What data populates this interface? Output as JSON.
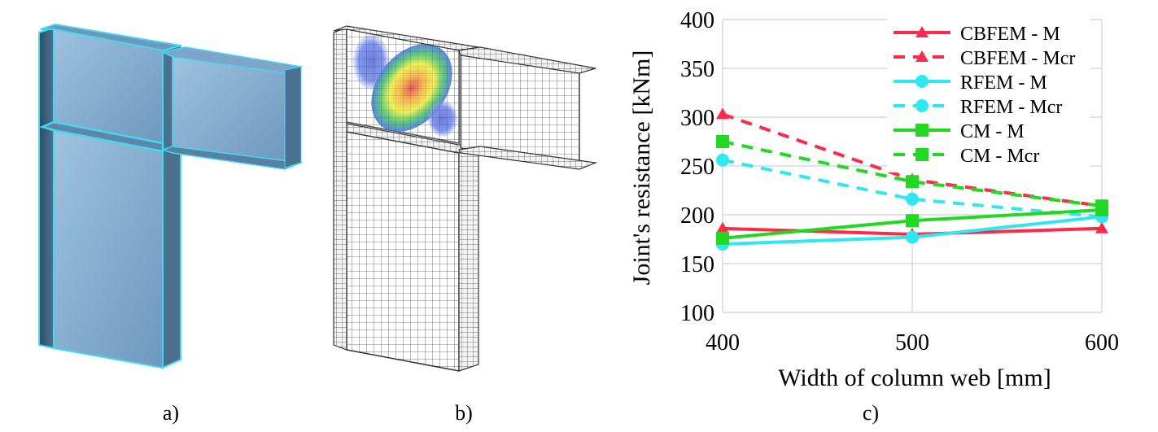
{
  "panels": {
    "a": {
      "caption": "a)"
    },
    "b": {
      "caption": "b)"
    },
    "c": {
      "caption": "c)"
    }
  },
  "colors": {
    "cbfem": "#FF2A4A",
    "rfem": "#2FE7F2",
    "cm": "#22D822",
    "grid": "#D9D9D9",
    "steel": "#8EB5D6",
    "steel_edge": "#3FD9F0",
    "mesh_line": "#555555"
  },
  "chart_data": {
    "type": "line",
    "title": "",
    "xlabel": "Width of column web [mm]",
    "ylabel": "Joint's resistance [kNm]",
    "x": [
      400,
      500,
      600
    ],
    "xticks": [
      "400",
      "500",
      "600"
    ],
    "xlim": [
      400,
      600
    ],
    "ylim": [
      100,
      400
    ],
    "yticks": [
      "100",
      "150",
      "200",
      "250",
      "300",
      "350",
      "400"
    ],
    "grid": true,
    "legend_position": "top-right",
    "series": [
      {
        "name": "CBFEM - M",
        "values": [
          186,
          180,
          186
        ],
        "color_key": "cbfem",
        "dash": false,
        "marker": "triangle"
      },
      {
        "name": "CBFEM - Mcr",
        "values": [
          303,
          236,
          209
        ],
        "color_key": "cbfem",
        "dash": true,
        "marker": "triangle"
      },
      {
        "name": "RFEM - M",
        "values": [
          170,
          177,
          198
        ],
        "color_key": "rfem",
        "dash": false,
        "marker": "circle"
      },
      {
        "name": "RFEM - Mcr",
        "values": [
          256,
          216,
          198
        ],
        "color_key": "rfem",
        "dash": true,
        "marker": "circle"
      },
      {
        "name": "CM - M",
        "values": [
          176,
          194,
          205
        ],
        "color_key": "cm",
        "dash": false,
        "marker": "square"
      },
      {
        "name": "CM - Mcr",
        "values": [
          275,
          234,
          209
        ],
        "color_key": "cm",
        "dash": true,
        "marker": "square"
      }
    ]
  }
}
